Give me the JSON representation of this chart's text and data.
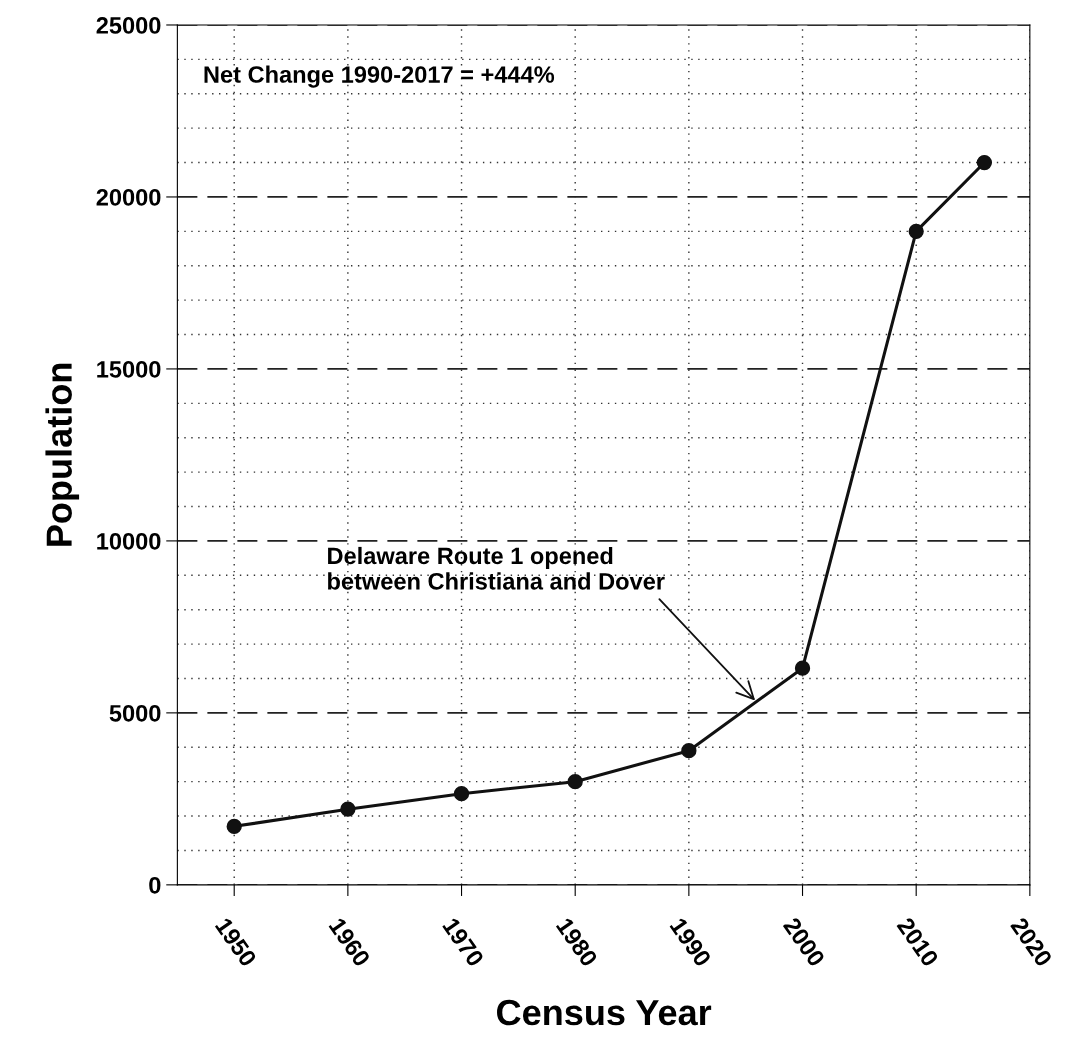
{
  "chart_data": {
    "type": "line",
    "xlabel": "Census Year",
    "ylabel": "Population",
    "x": [
      1950,
      1960,
      1970,
      1980,
      1990,
      2000,
      2010,
      2016
    ],
    "series": [
      {
        "color": "#111111",
        "values": [
          1700,
          2200,
          2650,
          3000,
          3900,
          6300,
          19000,
          21000
        ]
      }
    ],
    "xlim": [
      1945,
      2020
    ],
    "xticks": [
      1950,
      1960,
      1970,
      1980,
      1990,
      2000,
      2010,
      2020
    ],
    "ylim": [
      0,
      25000
    ],
    "yticks": [
      0,
      {
        "value": 1000,
        "label": null
      },
      {
        "value": 2000,
        "label": null
      },
      {
        "value": 3000,
        "label": null
      },
      {
        "value": 4000,
        "label": null
      },
      5000,
      {
        "value": 6000,
        "label": null
      },
      {
        "value": 7000,
        "label": null
      },
      {
        "value": 8000,
        "label": null
      },
      {
        "value": 9000,
        "label": null
      },
      10000,
      {
        "value": 11000,
        "label": null
      },
      {
        "value": 12000,
        "label": null
      },
      {
        "value": 13000,
        "label": null
      },
      {
        "value": 14000,
        "label": null
      },
      15000,
      {
        "value": 16000,
        "label": null
      },
      {
        "value": 17000,
        "label": null
      },
      {
        "value": 18000,
        "label": null
      },
      {
        "value": 19000,
        "label": null
      },
      20000,
      {
        "value": 21000,
        "label": null
      },
      {
        "value": 22000,
        "label": null
      },
      {
        "value": 23000,
        "label": null
      },
      {
        "value": 24000,
        "label": null
      },
      25000
    ],
    "annotations": [
      "Net Change 1990-2017 = +444%",
      {
        "text": "Delaware Route 1 opened\nbetween Christiana and Dover",
        "x": 1996,
        "y": 5300
      }
    ],
    "grid": true,
    "marker": "circle",
    "line_style": "solid",
    "legend": false
  }
}
